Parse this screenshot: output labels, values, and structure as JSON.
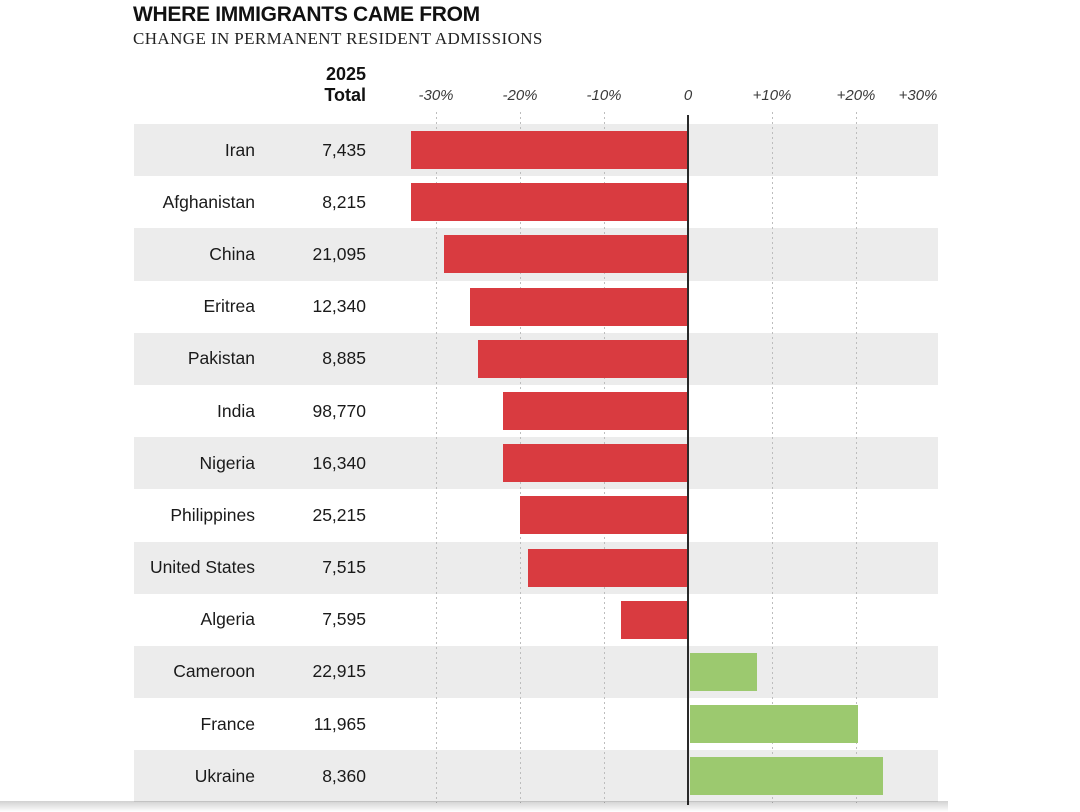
{
  "header": {
    "title": "WHERE IMMIGRANTS CAME FROM",
    "subtitle": "CHANGE IN PERMANENT RESIDENT ADMISSIONS",
    "total_col_line1": "2025",
    "total_col_line2": "Total"
  },
  "colors": {
    "negative_bar": "#d93b40",
    "positive_bar": "#9cc96f",
    "row_stripe": "#ececec",
    "zero_line": "#2a2a2a",
    "gridline": "#bdbdbd"
  },
  "chart_data": {
    "type": "bar",
    "orientation": "horizontal",
    "title": "WHERE IMMIGRANTS CAME FROM",
    "subtitle": "CHANGE IN PERMANENT RESIDENT ADMISSIONS",
    "value_column_header": "2025 Total",
    "xlim": [
      -30,
      30
    ],
    "grid": "dotted-vertical",
    "x_ticks": [
      {
        "label": "-30%",
        "value": -30
      },
      {
        "label": "-20%",
        "value": -20
      },
      {
        "label": "-10%",
        "value": -10
      },
      {
        "label": "0",
        "value": 0
      },
      {
        "label": "+10%",
        "value": 10
      },
      {
        "label": "+20%",
        "value": 20
      },
      {
        "label": "+30%",
        "value": 30
      }
    ],
    "rows": [
      {
        "country": "Iran",
        "total_2025": "7,435",
        "change_pct": -33
      },
      {
        "country": "Afghanistan",
        "total_2025": "8,215",
        "change_pct": -33
      },
      {
        "country": "China",
        "total_2025": "21,095",
        "change_pct": -29
      },
      {
        "country": "Eritrea",
        "total_2025": "12,340",
        "change_pct": -26
      },
      {
        "country": "Pakistan",
        "total_2025": "8,885",
        "change_pct": -25
      },
      {
        "country": "India",
        "total_2025": "98,770",
        "change_pct": -22
      },
      {
        "country": "Nigeria",
        "total_2025": "16,340",
        "change_pct": -22
      },
      {
        "country": "Philippines",
        "total_2025": "25,215",
        "change_pct": -20
      },
      {
        "country": "United States",
        "total_2025": "7,515",
        "change_pct": -19
      },
      {
        "country": "Algeria",
        "total_2025": "7,595",
        "change_pct": -8
      },
      {
        "country": "Cameroon",
        "total_2025": "22,915",
        "change_pct": 8
      },
      {
        "country": "France",
        "total_2025": "11,965",
        "change_pct": 20
      },
      {
        "country": "Ukraine",
        "total_2025": "8,360",
        "change_pct": 23
      }
    ]
  }
}
